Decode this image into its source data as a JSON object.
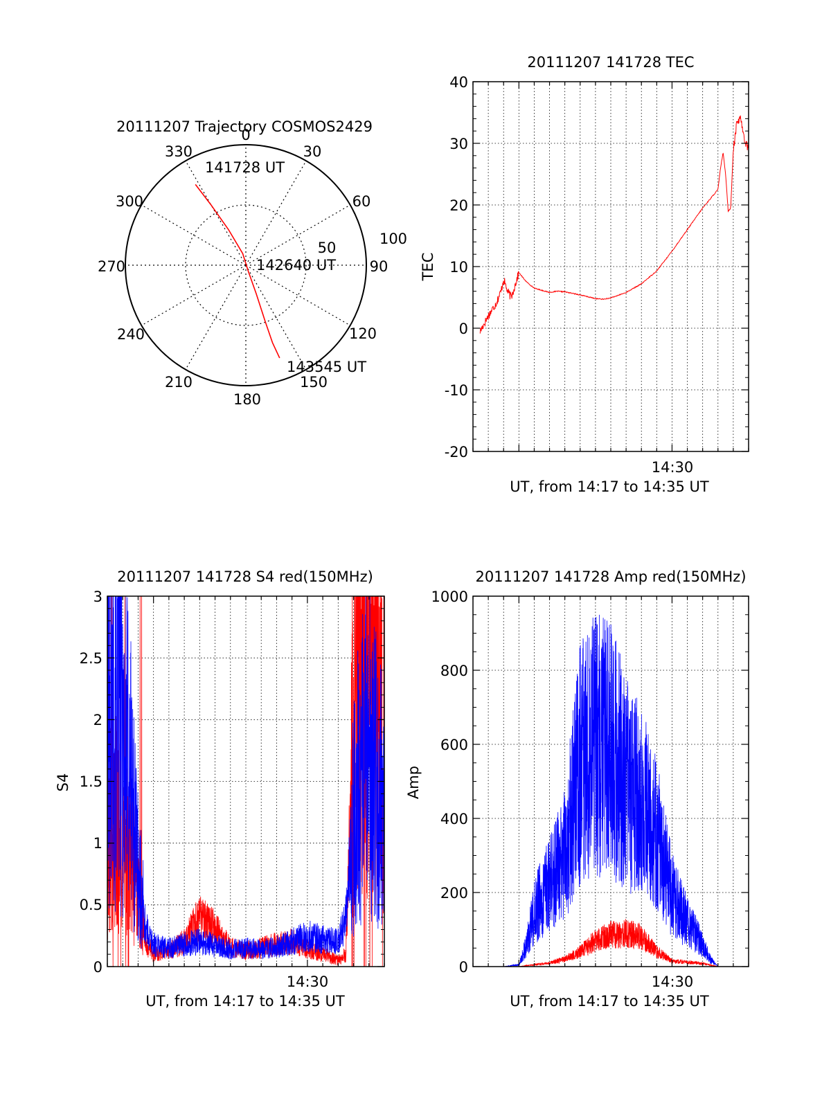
{
  "colors": {
    "red": "#ff0000",
    "blue": "#0000ff",
    "axis": "#000000",
    "grid": "#000000",
    "background": "#ffffff"
  },
  "panels": {
    "trajectory": {
      "title": "20111207 Trajectory COSMOS2429",
      "azimuth_labels": [
        "0",
        "30",
        "60",
        "90",
        "120",
        "150",
        "180",
        "210",
        "240",
        "270",
        "300",
        "330"
      ],
      "ring_labels": [
        "50",
        "100"
      ],
      "start_label": "141728 UT",
      "mid_label": "142640 UT",
      "end_label": "143545 UT"
    },
    "tec": {
      "title": "20111207 141728 TEC",
      "ylabel": "TEC",
      "xlabel": "UT, from 14:17 to 14:35 UT",
      "xtick": "14:30",
      "yticks": [
        "40",
        "30",
        "20",
        "10",
        "0",
        "-10",
        "-20"
      ]
    },
    "s4": {
      "title": "20111207 141728 S4 red(150MHz)",
      "ylabel": "S4",
      "xlabel": "UT, from 14:17 to 14:35 UT",
      "xtick": "14:30",
      "yticks": [
        "3",
        "2.5",
        "2",
        "1.5",
        "1",
        "0.5",
        "0"
      ]
    },
    "amp": {
      "title": "20111207 141728 Amp red(150MHz)",
      "ylabel": "Amp",
      "xlabel": "UT, from 14:17 to 14:35 UT",
      "xtick": "14:30",
      "yticks": [
        "1000",
        "800",
        "600",
        "400",
        "200",
        "0"
      ]
    }
  },
  "chart_data": [
    {
      "type": "polar",
      "title": "20111207 Trajectory COSMOS2429",
      "radial_scale": "zenith distance, 0 at center, rings at 50 and 100",
      "grid": true,
      "series": [
        {
          "color": "#ff0000",
          "points": [
            {
              "az": 328,
              "r": 79
            },
            {
              "az": 330,
              "r": 58
            },
            {
              "az": 334,
              "r": 33
            },
            {
              "az": 345,
              "r": 10
            },
            {
              "az": 158,
              "r": 5
            },
            {
              "az": 160,
              "r": 25
            },
            {
              "az": 161,
              "r": 50
            },
            {
              "az": 161,
              "r": 68
            },
            {
              "az": 160,
              "r": 82
            }
          ]
        }
      ],
      "annotations": [
        {
          "text": "141728 UT",
          "az": 328,
          "r": 79
        },
        {
          "text": "142640 UT",
          "az": 158,
          "r": 5
        },
        {
          "text": "143545 UT",
          "az": 160,
          "r": 82
        }
      ]
    },
    {
      "type": "line",
      "title": "20111207 141728 TEC",
      "xlabel": "UT, from 14:17 to 14:35 UT",
      "ylabel": "TEC",
      "xlim": [
        "14:17:00",
        "14:35:00"
      ],
      "ylim": [
        -20,
        40
      ],
      "grid": true,
      "series": [
        {
          "color": "#ff0000",
          "x": [
            "14:17:28",
            "14:18:00",
            "14:18:30",
            "14:18:50",
            "14:19:00",
            "14:19:15",
            "14:19:30",
            "14:19:45",
            "14:20:00",
            "14:20:30",
            "14:21:00",
            "14:22:00",
            "14:22:30",
            "14:23:00",
            "14:24:00",
            "14:25:00",
            "14:25:30",
            "14:26:00",
            "14:27:00",
            "14:28:00",
            "14:29:00",
            "14:30:00",
            "14:31:00",
            "14:32:00",
            "14:33:00",
            "14:33:10",
            "14:33:20",
            "14:33:30",
            "14:33:40",
            "14:33:50",
            "14:34:00",
            "14:34:15",
            "14:34:30",
            "14:34:45",
            "14:35:00"
          ],
          "y": [
            -0.5,
            2,
            4,
            6,
            8,
            6,
            5,
            7,
            9,
            7.5,
            6.5,
            5.8,
            6,
            5.9,
            5.4,
            4.8,
            4.7,
            4.9,
            5.8,
            7.2,
            9.3,
            12.5,
            16,
            19.5,
            22.5,
            26,
            28.5,
            25,
            19,
            19.5,
            29,
            33.5,
            34,
            30.5,
            29
          ]
        }
      ]
    },
    {
      "type": "line",
      "title": "20111207 141728 S4 red(150MHz)",
      "xlabel": "UT, from 14:17 to 14:35 UT",
      "ylabel": "S4",
      "xlim": [
        "14:17:00",
        "14:35:00"
      ],
      "ylim": [
        0,
        3
      ],
      "grid": true,
      "series": [
        {
          "color": "#0000ff",
          "x": [
            "14:17:00",
            "14:17:30",
            "14:18:00",
            "14:18:30",
            "14:19:00",
            "14:19:30",
            "14:20:00",
            "14:21:00",
            "14:22:00",
            "14:23:00",
            "14:24:00",
            "14:25:00",
            "14:26:00",
            "14:27:00",
            "14:28:00",
            "14:29:00",
            "14:30:00",
            "14:31:00",
            "14:32:00",
            "14:32:30",
            "14:33:00",
            "14:33:30",
            "14:34:00",
            "14:34:30",
            "14:35:00"
          ],
          "y": [
            2.0,
            2.2,
            1.9,
            1.6,
            0.8,
            0.3,
            0.18,
            0.15,
            0.18,
            0.2,
            0.17,
            0.14,
            0.15,
            0.14,
            0.16,
            0.2,
            0.25,
            0.22,
            0.2,
            0.4,
            1.2,
            1.6,
            1.8,
            1.5,
            1.3
          ]
        },
        {
          "color": "#ff0000",
          "x": [
            "14:17:00",
            "14:17:30",
            "14:18:00",
            "14:18:30",
            "14:19:00",
            "14:19:30",
            "14:20:00",
            "14:21:00",
            "14:22:00",
            "14:23:00",
            "14:24:00",
            "14:25:00",
            "14:26:00",
            "14:27:00",
            "14:28:00",
            "14:29:00",
            "14:30:00",
            "14:31:00",
            "14:32:00",
            "14:32:30",
            "14:33:00",
            "14:33:30",
            "14:34:00",
            "14:34:30",
            "14:35:00"
          ],
          "y": [
            1.0,
            1.2,
            1.0,
            0.9,
            0.6,
            0.2,
            0.1,
            0.12,
            0.2,
            0.4,
            0.3,
            0.15,
            0.13,
            0.15,
            0.18,
            0.2,
            0.15,
            0.1,
            0.05,
            0.1,
            2.0,
            2.5,
            2.8,
            2.2,
            2.0
          ]
        }
      ]
    },
    {
      "type": "line",
      "title": "20111207 141728 Amp red(150MHz)",
      "xlabel": "UT, from 14:17 to 14:35 UT",
      "ylabel": "Amp",
      "xlim": [
        "14:17:00",
        "14:35:00"
      ],
      "ylim": [
        0,
        1000
      ],
      "grid": true,
      "series": [
        {
          "color": "#0000ff",
          "x": [
            "14:17:00",
            "14:19:00",
            "14:20:00",
            "14:20:30",
            "14:21:00",
            "14:22:00",
            "14:23:00",
            "14:24:00",
            "14:25:00",
            "14:26:00",
            "14:27:00",
            "14:28:00",
            "14:29:00",
            "14:30:00",
            "14:31:00",
            "14:32:00",
            "14:32:30",
            "14:33:00",
            "14:34:00",
            "14:35:00"
          ],
          "y": [
            0,
            0,
            5,
            60,
            150,
            220,
            300,
            550,
            600,
            580,
            500,
            450,
            350,
            200,
            120,
            60,
            20,
            0,
            0,
            0
          ]
        },
        {
          "color": "#ff0000",
          "x": [
            "14:17:00",
            "14:20:00",
            "14:21:00",
            "14:22:00",
            "14:23:00",
            "14:24:00",
            "14:25:00",
            "14:26:00",
            "14:27:00",
            "14:28:00",
            "14:29:00",
            "14:30:00",
            "14:31:00",
            "14:32:00",
            "14:33:00",
            "14:35:00"
          ],
          "y": [
            0,
            0,
            5,
            10,
            20,
            40,
            70,
            85,
            90,
            80,
            40,
            15,
            12,
            8,
            0,
            0
          ]
        }
      ]
    }
  ]
}
